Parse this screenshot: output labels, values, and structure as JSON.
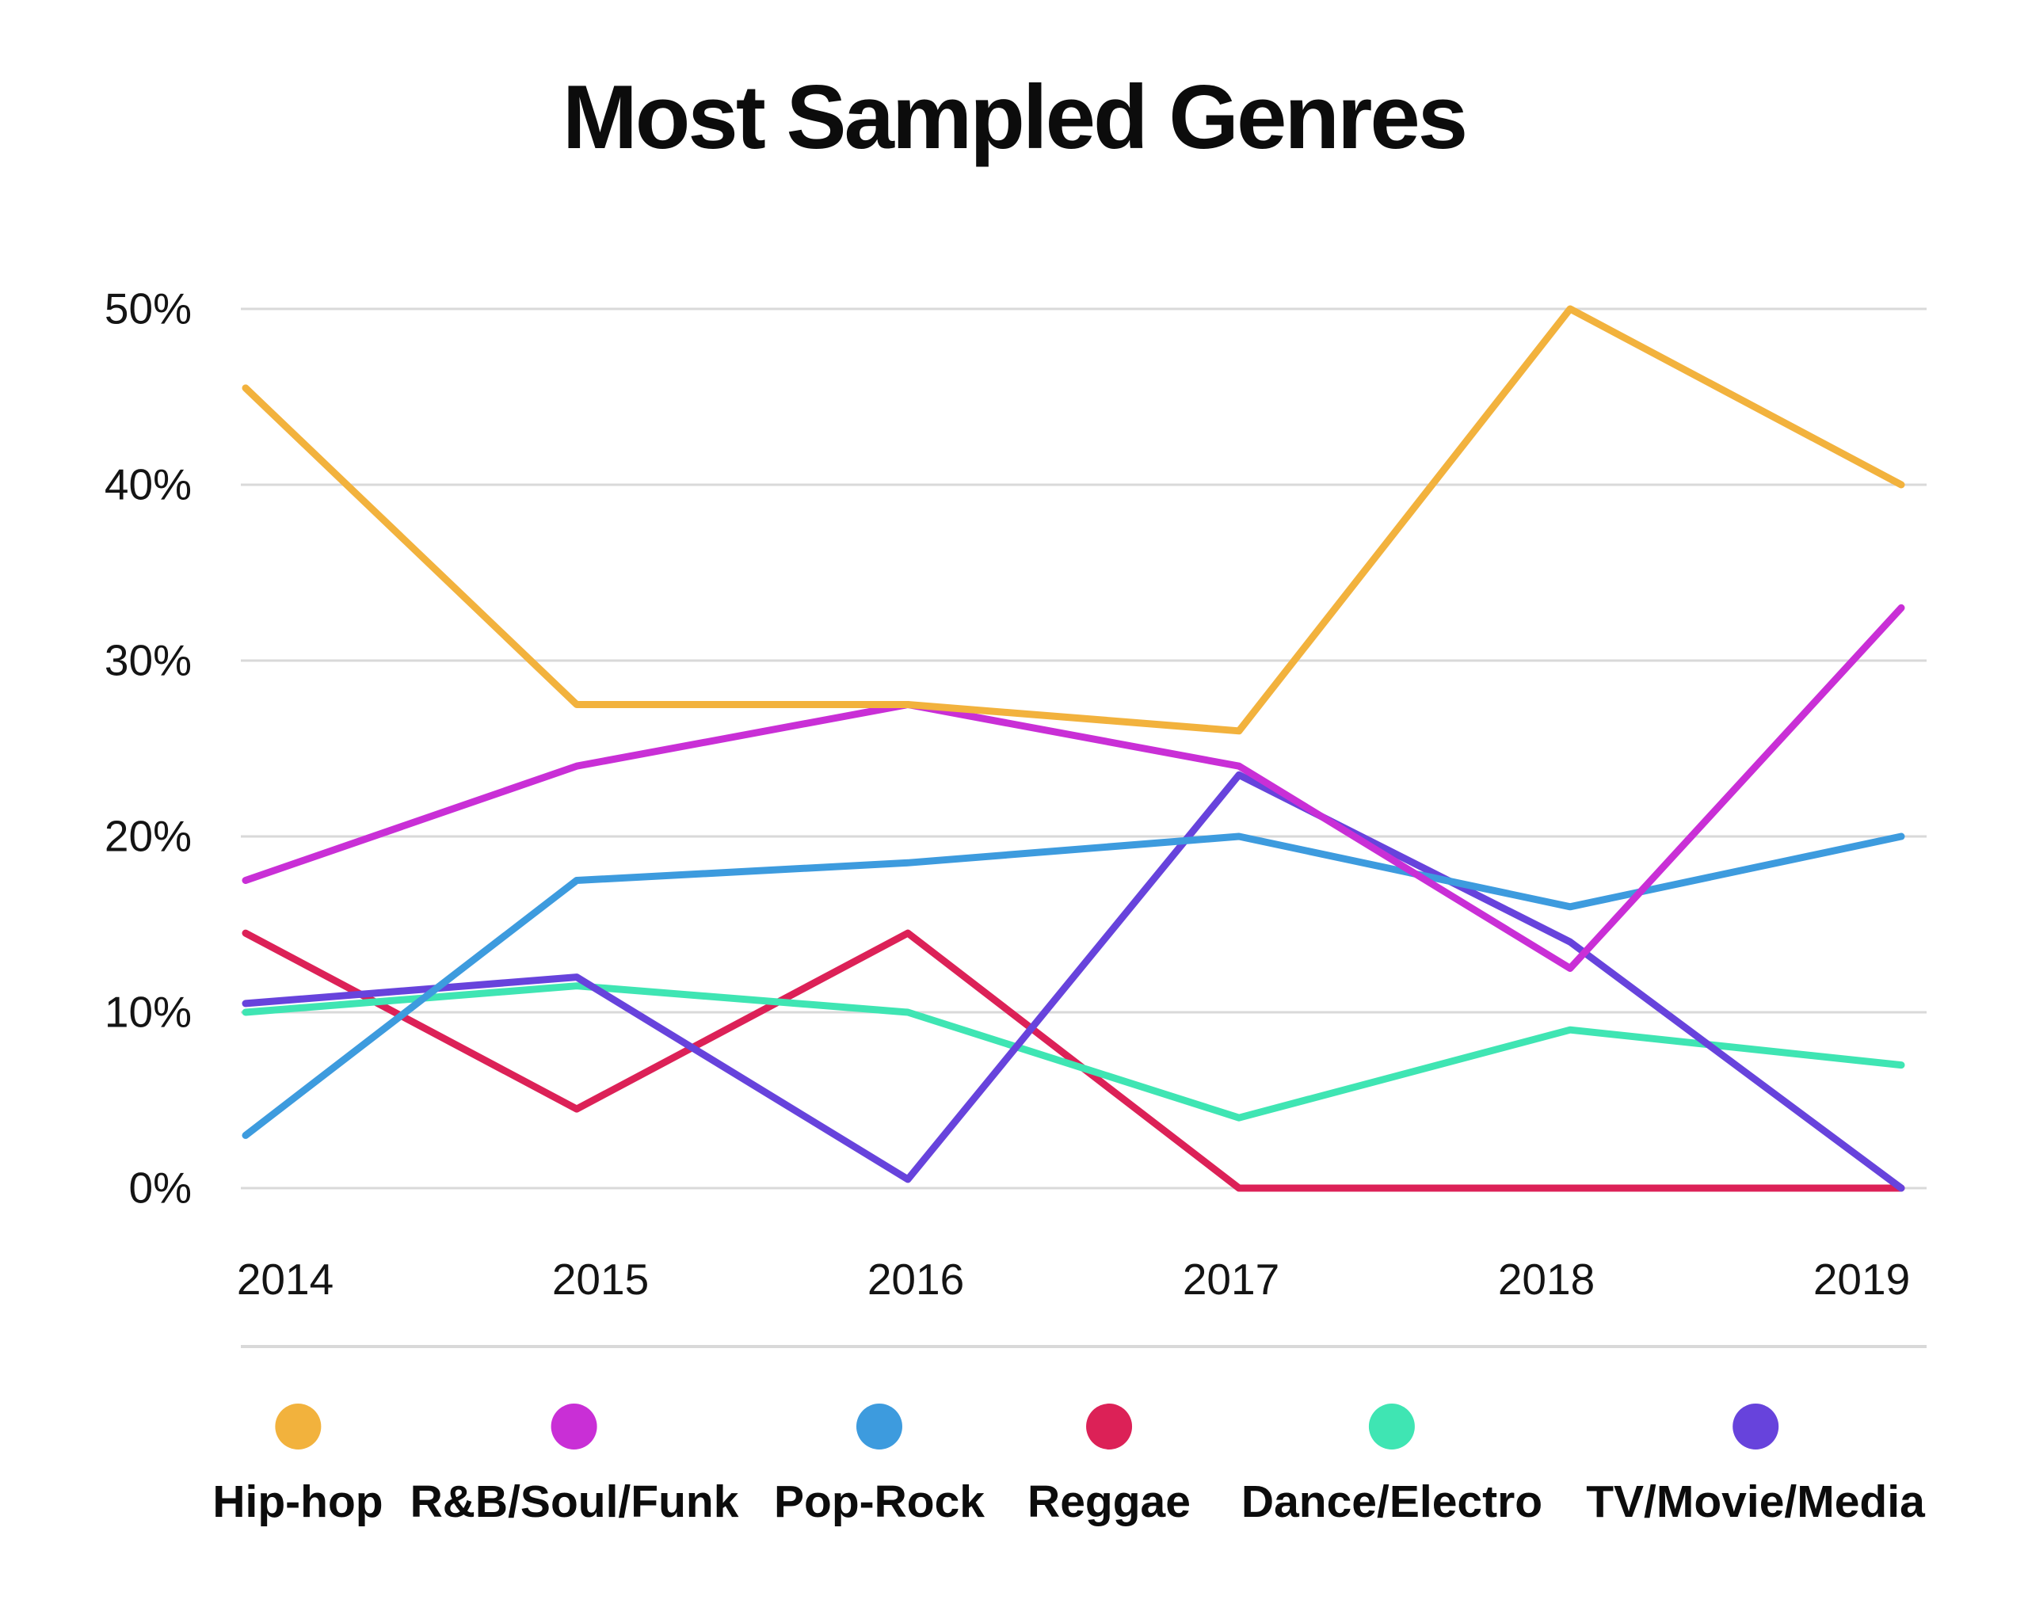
{
  "title": "Most Sampled Genres",
  "y_axis": {
    "tick_labels": [
      "50%",
      "40%",
      "30%",
      "20%",
      "10%",
      "0%"
    ]
  },
  "x_axis": {
    "tick_labels": [
      "2014",
      "2015",
      "2016",
      "2017",
      "2018",
      "2019"
    ]
  },
  "chart_data": {
    "type": "line",
    "title": "Most Sampled Genres",
    "x": [
      2014,
      2015,
      2016,
      2017,
      2018,
      2019
    ],
    "unit": "%",
    "ylim": [
      0,
      50
    ],
    "y_ticks": [
      50,
      40,
      30,
      20,
      10,
      0
    ],
    "grid": true,
    "grid_color": "#D9D9D9",
    "legend_position": "bottom",
    "series": [
      {
        "name": "Reggae",
        "color": "#DC2157",
        "values": [
          14.5,
          4.5,
          14.5,
          0,
          0,
          0
        ]
      },
      {
        "name": "Dance/Electro",
        "color": "#3FE5B3",
        "values": [
          10,
          11.5,
          10,
          4,
          9,
          7
        ]
      },
      {
        "name": "TV/Movie/Media",
        "color": "#6743DC",
        "values": [
          10.5,
          12,
          0.5,
          23.5,
          14,
          0
        ]
      },
      {
        "name": "Pop-Rock",
        "color": "#3D9BDE",
        "values": [
          3,
          17.5,
          18.5,
          20,
          16,
          20
        ]
      },
      {
        "name": "R&B/Soul/Funk",
        "color": "#C92FD6",
        "values": [
          17.5,
          24,
          27.5,
          24,
          12.5,
          33
        ]
      },
      {
        "name": "Hip-hop",
        "color": "#F2B23D",
        "values": [
          45.5,
          27.5,
          27.5,
          26,
          50,
          40
        ]
      }
    ],
    "legend_order": [
      "Hip-hop",
      "R&B/Soul/Funk",
      "Pop-Rock",
      "Reggae",
      "Dance/Electro",
      "TV/Movie/Media"
    ]
  }
}
